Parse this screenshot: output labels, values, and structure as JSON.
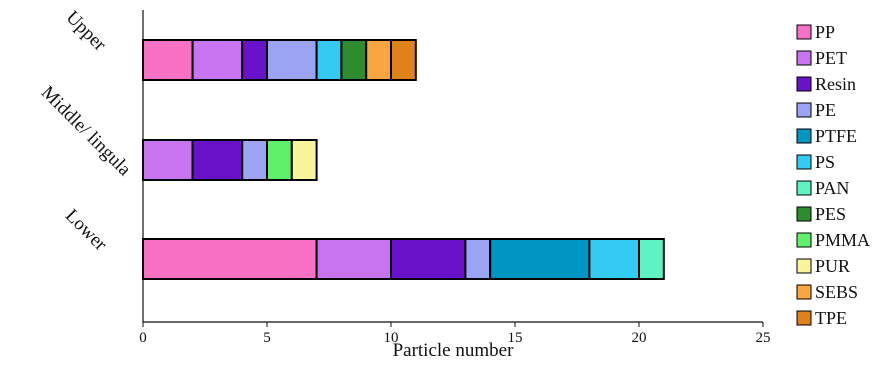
{
  "chart_data": {
    "type": "bar",
    "orientation": "horizontal",
    "stacked": true,
    "categories": [
      "Upper",
      "Middle/ lingula",
      "Lower"
    ],
    "series": [
      {
        "name": "PP",
        "color": "#f772c4",
        "values": [
          2,
          0,
          7
        ]
      },
      {
        "name": "PET",
        "color": "#c774f0",
        "values": [
          2,
          2,
          3
        ]
      },
      {
        "name": "Resin",
        "color": "#6a12c9",
        "values": [
          1,
          2,
          3
        ]
      },
      {
        "name": "PE",
        "color": "#9aa4f3",
        "values": [
          2,
          1,
          1
        ]
      },
      {
        "name": "PTFE",
        "color": "#0096c4",
        "values": [
          0,
          0,
          4
        ]
      },
      {
        "name": "PS",
        "color": "#33cbf3",
        "values": [
          1,
          0,
          2
        ]
      },
      {
        "name": "PAN",
        "color": "#5ff2c2",
        "values": [
          0,
          0,
          1
        ]
      },
      {
        "name": "PES",
        "color": "#2e8b2e",
        "values": [
          1,
          0,
          0
        ]
      },
      {
        "name": "PMMA",
        "color": "#5ef06a",
        "values": [
          0,
          1,
          0
        ]
      },
      {
        "name": "PUR",
        "color": "#f8f59c",
        "values": [
          0,
          1,
          0
        ]
      },
      {
        "name": "SEBS",
        "color": "#f9a640",
        "values": [
          1,
          0,
          0
        ]
      },
      {
        "name": "TPE",
        "color": "#e0821c",
        "values": [
          1,
          0,
          0
        ]
      }
    ],
    "xlabel": "Particle number",
    "xlim": [
      0,
      25
    ],
    "xticks": [
      "0",
      "5",
      "10",
      "15",
      "20",
      "25"
    ],
    "grid": false,
    "legend_position": "right"
  }
}
